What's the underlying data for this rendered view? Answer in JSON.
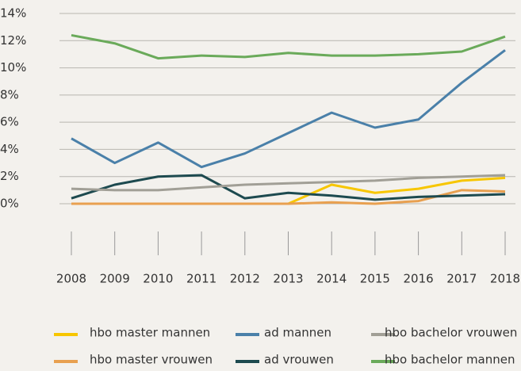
{
  "chart_data": {
    "type": "line",
    "x": [
      2008,
      2009,
      2010,
      2011,
      2012,
      2013,
      2014,
      2015,
      2016,
      2017,
      2018
    ],
    "xlim": [
      2008,
      2018
    ],
    "ylim": [
      0,
      14
    ],
    "yticks": [
      {
        "value": 0,
        "label": "0%"
      },
      {
        "value": 2,
        "label": "2%"
      },
      {
        "value": 4,
        "label": "4%"
      },
      {
        "value": 6,
        "label": "6%"
      },
      {
        "value": 8,
        "label": "8%"
      },
      {
        "value": 10,
        "label": "10%"
      },
      {
        "value": 12,
        "label": "12%"
      },
      {
        "value": 14,
        "label": "14%"
      }
    ],
    "grid": true,
    "legend": "bottom",
    "series": [
      {
        "name": "hbo master mannen",
        "color": "#f7c600",
        "values": [
          0,
          0,
          0,
          0,
          0,
          0,
          1.4,
          0.8,
          1.1,
          1.7,
          1.9
        ]
      },
      {
        "name": "hbo master vrouwen",
        "color": "#e8a050",
        "values": [
          0,
          0,
          0,
          0,
          0,
          0,
          0.1,
          0,
          0.2,
          1.0,
          0.9
        ]
      },
      {
        "name": "ad mannen",
        "color": "#4a80a9",
        "values": [
          4.8,
          3.0,
          4.5,
          2.7,
          3.7,
          5.2,
          6.7,
          5.6,
          6.2,
          8.9,
          11.3
        ]
      },
      {
        "name": "ad vrouwen",
        "color": "#1d4a4f",
        "values": [
          0.4,
          1.4,
          2.0,
          2.1,
          0.4,
          0.8,
          0.6,
          0.3,
          0.5,
          0.6,
          0.7
        ]
      },
      {
        "name": "hbo bachelor vrouwen",
        "color": "#a19f96",
        "values": [
          1.1,
          1.0,
          1.0,
          1.2,
          1.4,
          1.5,
          1.6,
          1.7,
          1.9,
          2.0,
          2.1
        ]
      },
      {
        "name": "hbo bachelor mannen",
        "color": "#6aaa5a",
        "values": [
          12.4,
          11.8,
          10.7,
          10.9,
          10.8,
          11.1,
          10.9,
          10.9,
          11.0,
          11.2,
          12.3
        ]
      }
    ]
  }
}
